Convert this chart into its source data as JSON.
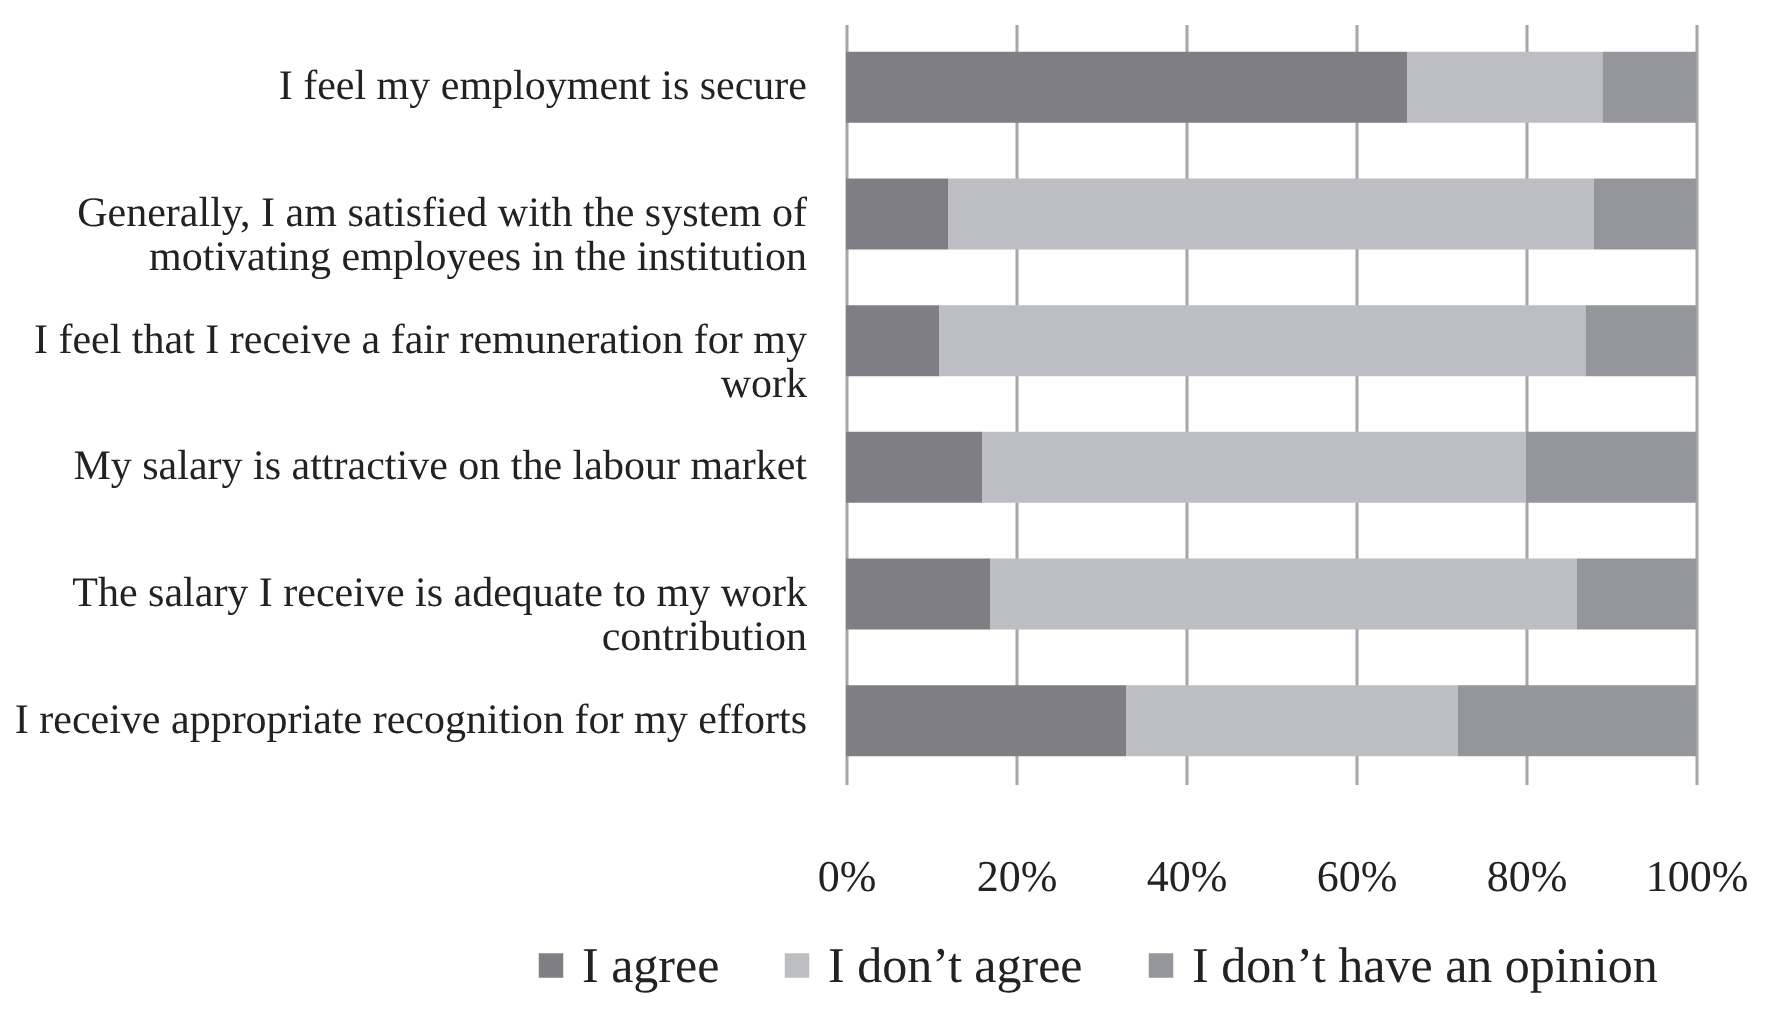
{
  "chart_data": {
    "type": "bar",
    "orientation": "horizontal",
    "stacked": true,
    "categories": [
      "I feel my employment is secure",
      "Generally, I am satisfied with the system of motivating employees in the institution",
      "I feel that I receive a fair remuneration for my work",
      "My salary is attractive on the labour market",
      "The salary I receive is adequate to my work contribution",
      "I receive appropriate recognition for my efforts"
    ],
    "series": [
      {
        "name": "I agree",
        "color": "#7f7f83",
        "values": [
          66,
          12,
          11,
          16,
          17,
          33
        ]
      },
      {
        "name": "I don’t agree",
        "color": "#bdbec2",
        "values": [
          23,
          76,
          76,
          64,
          69,
          39
        ]
      },
      {
        "name": "I don’t have an opinion",
        "color": "#95969a",
        "values": [
          11,
          12,
          13,
          20,
          14,
          28
        ]
      }
    ],
    "xlim": [
      0,
      100
    ],
    "xticks": [
      {
        "value": 0,
        "label": "0%"
      },
      {
        "value": 20,
        "label": "20%"
      },
      {
        "value": 40,
        "label": "40%"
      },
      {
        "value": 60,
        "label": "60%"
      },
      {
        "value": 80,
        "label": "80%"
      },
      {
        "value": 100,
        "label": "100%"
      }
    ],
    "grid": "x",
    "legend": "bottom"
  }
}
